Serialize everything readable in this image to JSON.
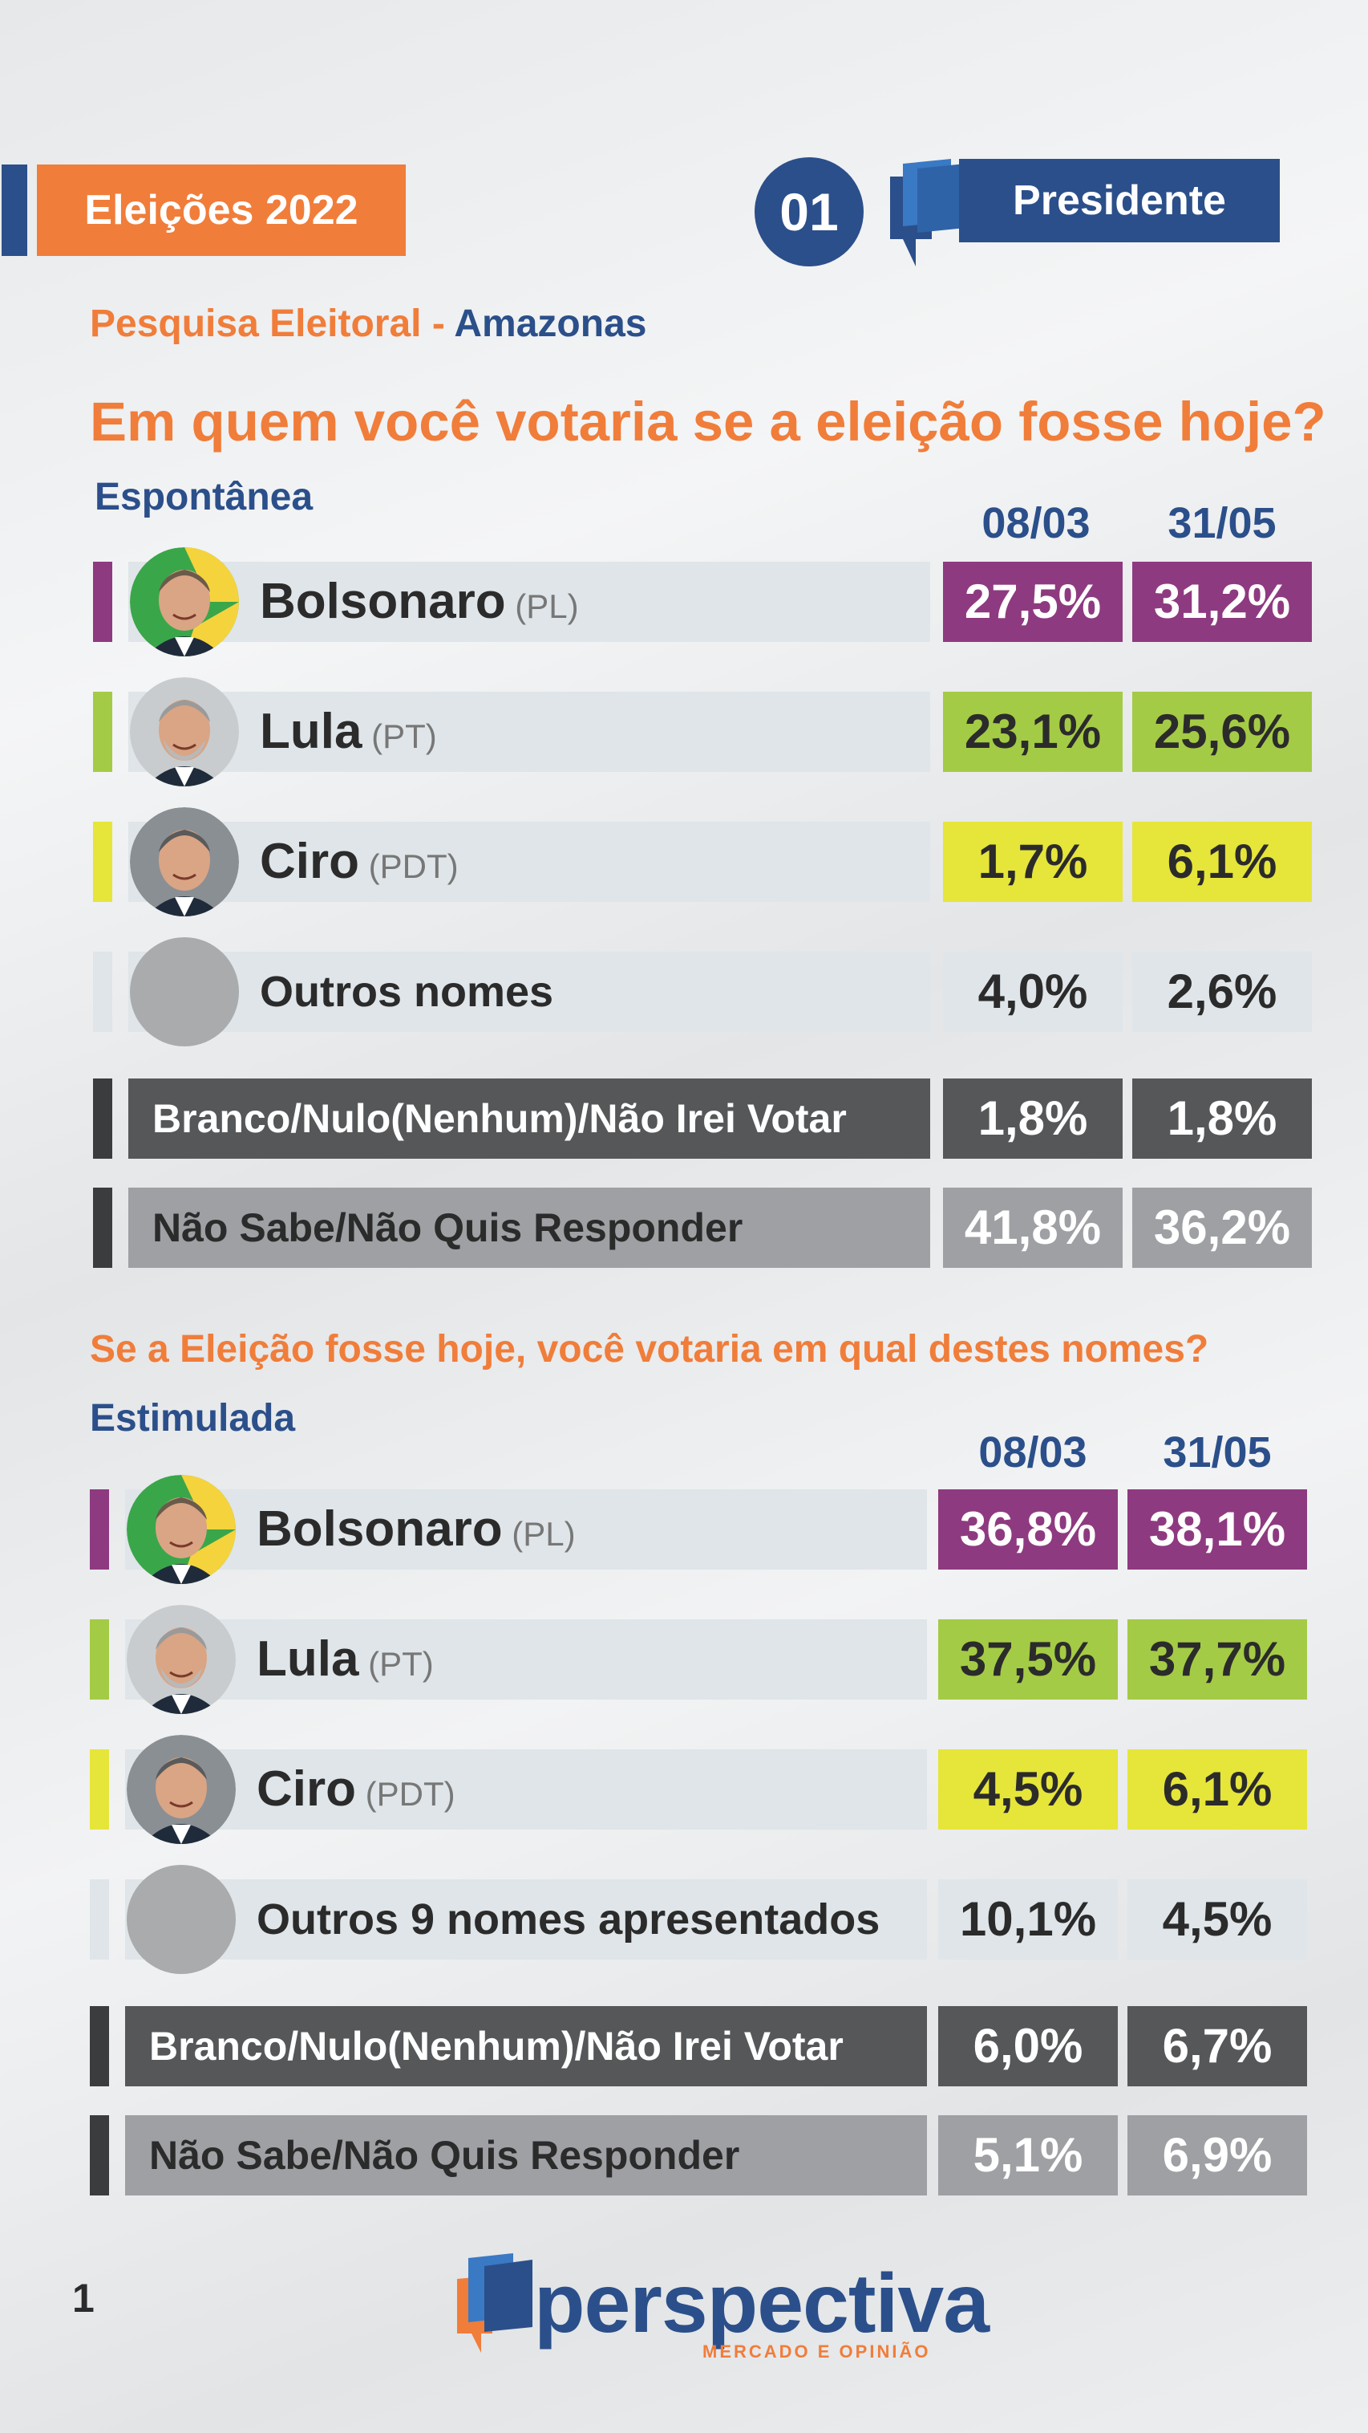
{
  "header": {
    "tag": "Eleições 2022",
    "number": "01",
    "office": "Presidente",
    "survey_label": "Pesquisa Eleitoral -",
    "state": "Amazonas"
  },
  "colors": {
    "brand_blue": "#2b4f8a",
    "brand_orange": "#f07d3a",
    "pl": "#8e3a80",
    "pt": "#a4cb45",
    "pdt": "#e6e53a",
    "others": "#dfe5e8",
    "blank": "#555759",
    "unknown": "#9ea0a3"
  },
  "chart_data": [
    {
      "type": "table",
      "title": "Em quem você votaria se a eleição fosse hoje?",
      "subtitle": "Espontânea",
      "categories": [
        "08/03",
        "31/05"
      ],
      "series": [
        {
          "name": "Bolsonaro",
          "party": "(PL)",
          "values": [
            "27,5%",
            "31,2%"
          ]
        },
        {
          "name": "Lula",
          "party": "(PT)",
          "values": [
            "23,1%",
            "25,6%"
          ]
        },
        {
          "name": "Ciro",
          "party": "(PDT)",
          "values": [
            "1,7%",
            "6,1%"
          ]
        },
        {
          "name": "Outros nomes",
          "values": [
            "4,0%",
            "2,6%"
          ]
        },
        {
          "name": "Branco/Nulo(Nenhum)/Não Irei Votar",
          "values": [
            "1,8%",
            "1,8%"
          ]
        },
        {
          "name": "Não Sabe/Não Quis Responder",
          "values": [
            "41,8%",
            "36,2%"
          ]
        }
      ]
    },
    {
      "type": "table",
      "title": "Se a Eleição fosse hoje, você votaria em qual destes nomes?",
      "subtitle": "Estimulada",
      "categories": [
        "08/03",
        "31/05"
      ],
      "series": [
        {
          "name": "Bolsonaro",
          "party": "(PL)",
          "values": [
            "36,8%",
            "38,1%"
          ]
        },
        {
          "name": "Lula",
          "party": "(PT)",
          "values": [
            "37,5%",
            "37,7%"
          ]
        },
        {
          "name": "Ciro",
          "party": "(PDT)",
          "values": [
            "4,5%",
            "6,1%"
          ]
        },
        {
          "name": "Outros 9 nomes apresentados",
          "values": [
            "10,1%",
            "4,5%"
          ]
        },
        {
          "name": "Branco/Nulo(Nenhum)/Não Irei Votar",
          "values": [
            "6,0%",
            "6,7%"
          ]
        },
        {
          "name": "Não Sabe/Não Quis Responder",
          "values": [
            "5,1%",
            "6,9%"
          ]
        }
      ]
    }
  ],
  "footer": {
    "page": "1",
    "brand": "perspectiva",
    "brand_sub": "MERCADO E OPINIÃO"
  }
}
